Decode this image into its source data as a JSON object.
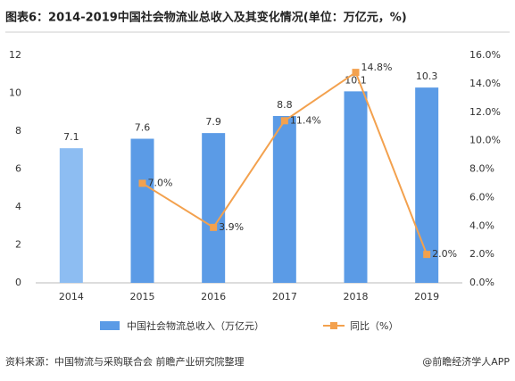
{
  "chart_data": {
    "type": "bar-line",
    "title": "图表6：2014-2019中国社会物流业总收入及其变化情况(单位：万亿元，%)",
    "source": "资料来源：中国物流与采购联合会 前瞻产业研究院整理",
    "watermark": "@前瞻经济学人APP",
    "categories": [
      "2014",
      "2015",
      "2016",
      "2017",
      "2018",
      "2019"
    ],
    "series": [
      {
        "name": "中国社会物流总收入（万亿元）",
        "type": "bar",
        "color": "#5b9be6",
        "colors": [
          "#8dbdf2",
          "#5b9be6",
          "#5b9be6",
          "#5b9be6",
          "#5b9be6",
          "#5b9be6"
        ],
        "values": [
          7.1,
          7.6,
          7.9,
          8.8,
          10.1,
          10.3
        ]
      },
      {
        "name": "同比（%）",
        "type": "line",
        "axis": "y2",
        "color": "#f3a14e",
        "values": [
          null,
          7.0,
          3.9,
          11.4,
          14.8,
          2.0
        ],
        "value_labels": [
          null,
          "7.0%",
          "3.9%",
          "11.4%",
          "14.8%",
          "2.0%"
        ]
      }
    ],
    "ylim": [
      0,
      12
    ],
    "yticks": [
      0,
      2,
      4,
      6,
      8,
      10,
      12
    ],
    "y2lim": [
      0,
      16
    ],
    "y2ticks": [
      {
        "value": 0,
        "label": "0.0%"
      },
      {
        "value": 2,
        "label": "2.0%"
      },
      {
        "value": 4,
        "label": "4.0%"
      },
      {
        "value": 6,
        "label": "6.0%"
      },
      {
        "value": 8,
        "label": "8.0%"
      },
      {
        "value": 10,
        "label": "10.0%"
      },
      {
        "value": 12,
        "label": "12.0%"
      },
      {
        "value": 14,
        "label": "14.0%"
      },
      {
        "value": 16,
        "label": "16.0%"
      }
    ],
    "grid": false
  }
}
